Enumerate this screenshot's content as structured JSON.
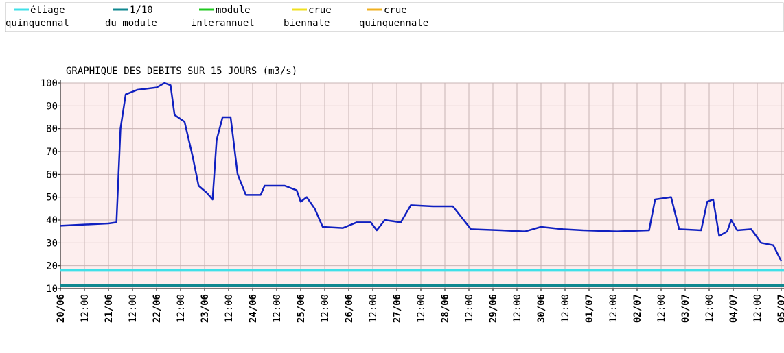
{
  "chart_data": {
    "type": "line",
    "title": "GRAPHIQUE DES DEBITS SUR 15 JOURS (m3/s)",
    "legend": [
      {
        "label": [
          "étiage",
          "quinquennal"
        ],
        "color": "#40e0e8"
      },
      {
        "label": [
          "1/10",
          "du module"
        ],
        "color": "#108890"
      },
      {
        "label": [
          "module",
          "interannuel"
        ],
        "color": "#20c820"
      },
      {
        "label": [
          "crue",
          "biennale"
        ],
        "color": "#f0e020"
      },
      {
        "label": [
          "crue",
          "quinquennale"
        ],
        "color": "#f0b020"
      }
    ],
    "reference_lines": [
      {
        "legend": 0,
        "value": 18
      },
      {
        "legend": 1,
        "value": 11.5
      }
    ],
    "series": [
      {
        "color": "#1020c0",
        "x": [
          0,
          12,
          24,
          28,
          30,
          32.6,
          38.4,
          48,
          52,
          55,
          57,
          62,
          66,
          69,
          73,
          76,
          78,
          81,
          85,
          88.5,
          92.6,
          100,
          102,
          112,
          118,
          120,
          123,
          127,
          131,
          141,
          148,
          155,
          158,
          162,
          170,
          175,
          186,
          196,
          205,
          220,
          232,
          240,
          251,
          261,
          278,
          294,
          297,
          305,
          309,
          320,
          323,
          326,
          329,
          333,
          335,
          338,
          345,
          350,
          356,
          360
        ],
        "values": [
          37.5,
          38,
          38.5,
          39,
          80,
          95,
          97,
          98,
          100,
          99,
          86,
          83,
          68,
          55,
          52,
          49,
          75,
          85,
          85,
          60,
          51,
          51,
          55,
          55,
          53,
          48,
          50,
          45,
          37,
          36.5,
          39,
          39,
          35.5,
          40,
          39,
          46.5,
          46,
          46,
          36,
          35.5,
          35,
          37,
          36,
          35.5,
          35,
          35.5,
          49,
          50,
          36,
          35.5,
          48,
          49,
          33,
          35,
          40,
          35.5,
          36,
          30,
          29,
          22
        ]
      }
    ],
    "xlim": [
      0,
      360
    ],
    "xticks": [
      {
        "value": 0,
        "label": "20/06"
      },
      {
        "value": 12,
        "label": "12:00"
      },
      {
        "value": 24,
        "label": "21/06"
      },
      {
        "value": 36,
        "label": "12:00"
      },
      {
        "value": 48,
        "label": "22/06"
      },
      {
        "value": 60,
        "label": "12:00"
      },
      {
        "value": 72,
        "label": "23/06"
      },
      {
        "value": 84,
        "label": "12:00"
      },
      {
        "value": 96,
        "label": "24/06"
      },
      {
        "value": 108,
        "label": "12:00"
      },
      {
        "value": 120,
        "label": "25/06"
      },
      {
        "value": 132,
        "label": "12:00"
      },
      {
        "value": 144,
        "label": "26/06"
      },
      {
        "value": 156,
        "label": "12:00"
      },
      {
        "value": 168,
        "label": "27/06"
      },
      {
        "value": 180,
        "label": "12:00"
      },
      {
        "value": 192,
        "label": "28/06"
      },
      {
        "value": 204,
        "label": "12:00"
      },
      {
        "value": 216,
        "label": "29/06"
      },
      {
        "value": 228,
        "label": "12:00"
      },
      {
        "value": 240,
        "label": "30/06"
      },
      {
        "value": 252,
        "label": "12:00"
      },
      {
        "value": 264,
        "label": "01/07"
      },
      {
        "value": 276,
        "label": "12:00"
      },
      {
        "value": 288,
        "label": "02/07"
      },
      {
        "value": 300,
        "label": "12:00"
      },
      {
        "value": 312,
        "label": "03/07"
      },
      {
        "value": 324,
        "label": "12:00"
      },
      {
        "value": 336,
        "label": "04/07"
      },
      {
        "value": 348,
        "label": "12:00"
      },
      {
        "value": 360,
        "label": "05/07"
      }
    ],
    "ylim": [
      10,
      100
    ],
    "yticks": [
      10,
      20,
      30,
      40,
      50,
      60,
      70,
      80,
      90,
      100
    ],
    "grid": true
  }
}
